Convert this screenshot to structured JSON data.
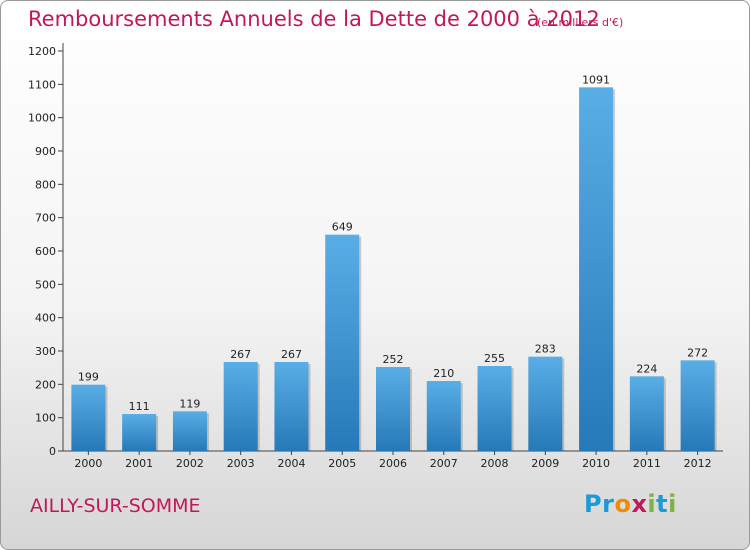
{
  "title": "Remboursements Annuels de la Dette de 2000 à 2012",
  "subtitle": "(en milliers d'€)",
  "place": "AILLY-SUR-SOMME",
  "logo": {
    "text": "Proxiti",
    "letters": [
      {
        "ch": "P",
        "color": "#1a9ad6"
      },
      {
        "ch": "r",
        "color": "#1a9ad6"
      },
      {
        "ch": "o",
        "color": "#f08c00"
      },
      {
        "ch": "x",
        "color": "#c2185b"
      },
      {
        "ch": "i",
        "color": "#7cb342"
      },
      {
        "ch": "t",
        "color": "#1a9ad6"
      },
      {
        "ch": "i",
        "color": "#7cb342"
      }
    ]
  },
  "colors": {
    "bar_top": "#5aaee6",
    "bar_bottom": "#2679b8",
    "title": "#c2185b"
  },
  "chart_data": {
    "type": "bar",
    "categories": [
      "2000",
      "2001",
      "2002",
      "2003",
      "2004",
      "2005",
      "2006",
      "2007",
      "2008",
      "2009",
      "2010",
      "2011",
      "2012"
    ],
    "values": [
      199,
      111,
      119,
      267,
      267,
      649,
      252,
      210,
      255,
      283,
      1091,
      224,
      272
    ],
    "ylim": [
      0,
      1200
    ],
    "yticks": [
      0,
      100,
      200,
      300,
      400,
      500,
      600,
      700,
      800,
      900,
      1000,
      1100,
      1200
    ],
    "grid": false,
    "legend": "none"
  }
}
